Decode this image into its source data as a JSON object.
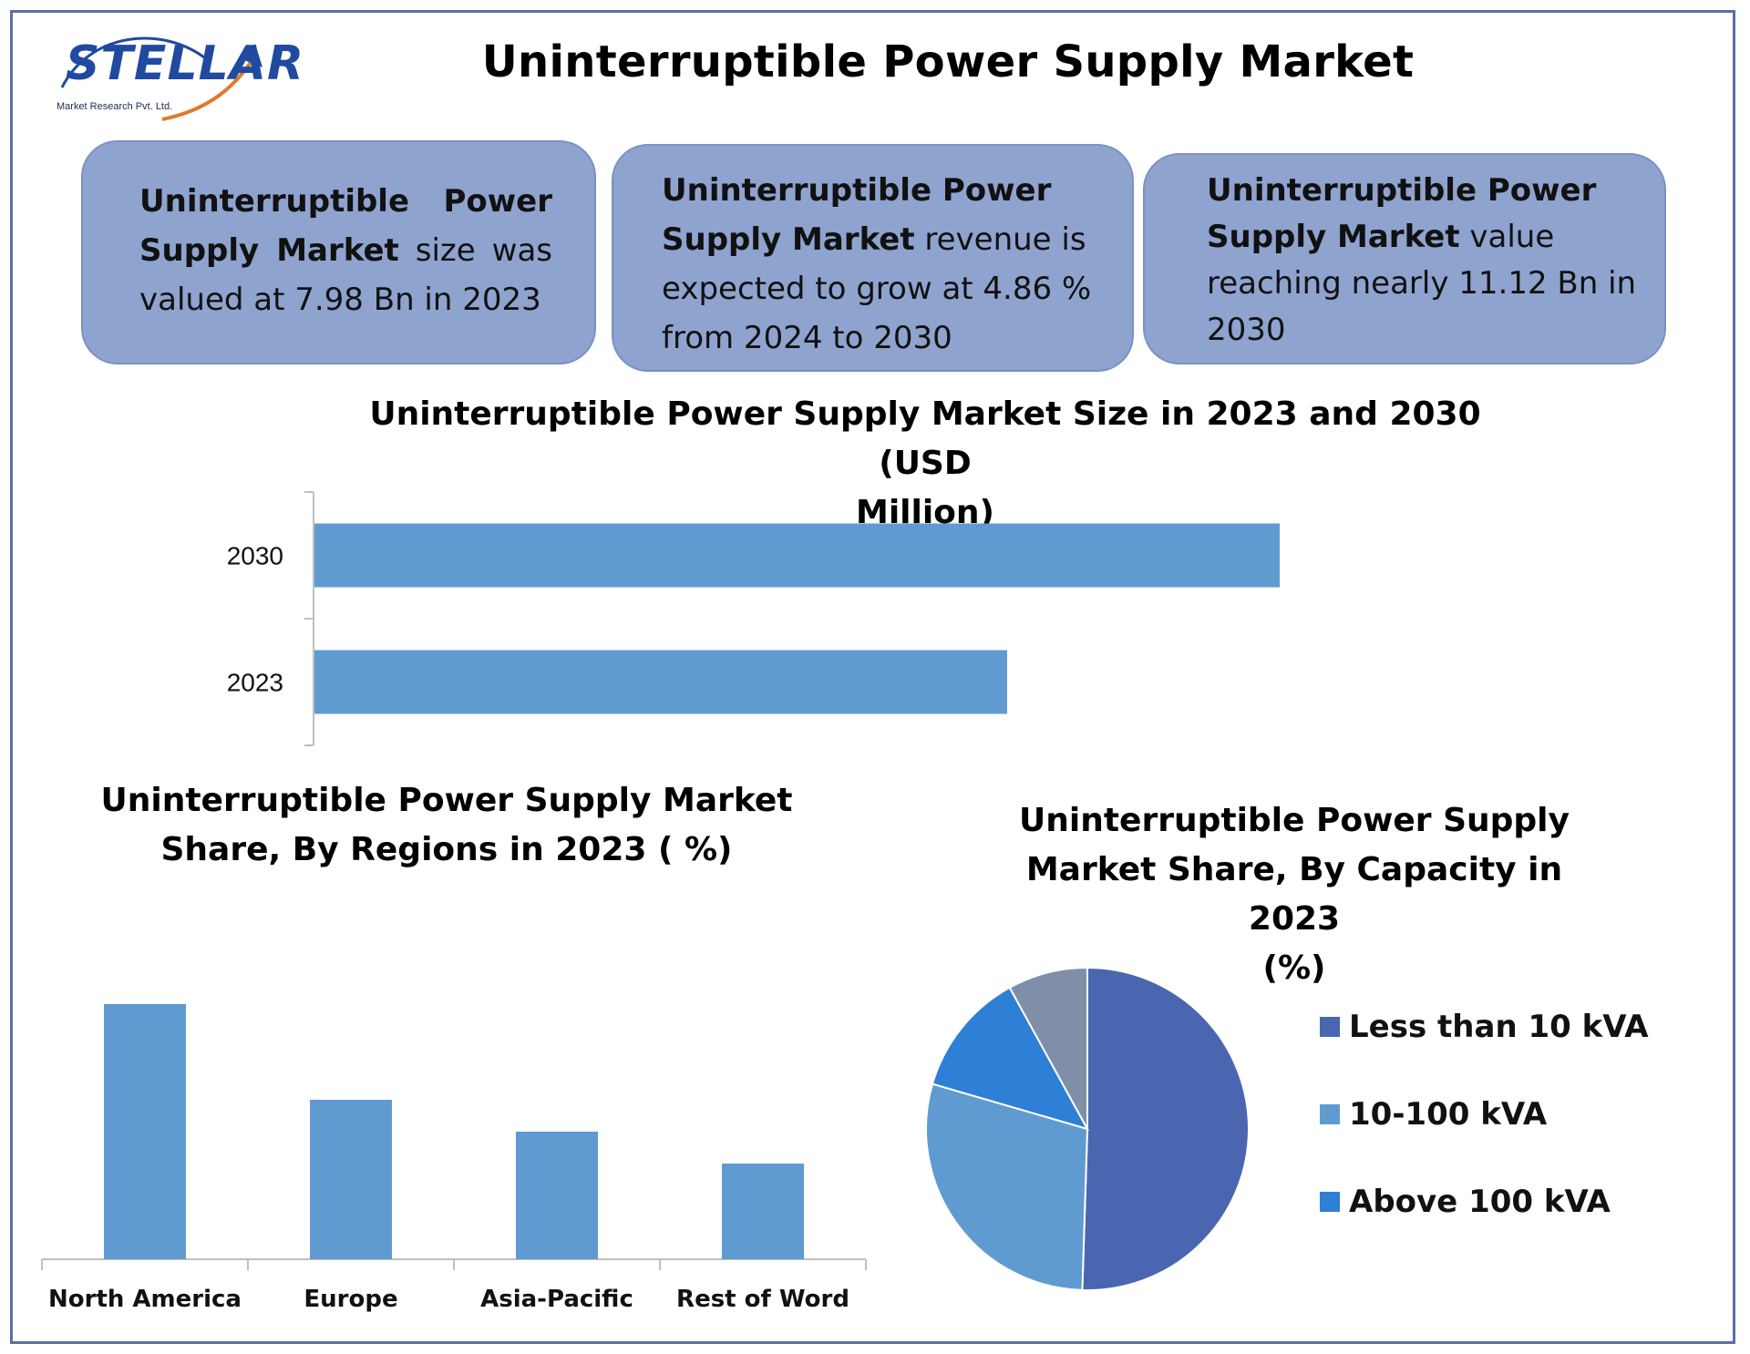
{
  "header": {
    "logo_word": "STELLAR",
    "logo_sub": "Market Research Pvt. Ltd.",
    "title": "Uninterruptible Power Supply Market"
  },
  "cards": [
    {
      "bold": "Uninterruptible Power Supply Market",
      "text": " size was valued at 7.98 Bn in 2023"
    },
    {
      "bold": "Uninterruptible Power Supply Market",
      "text": " revenue is expected to grow at 4.86 % from 2024 to 2030"
    },
    {
      "bold": "Uninterruptible Power Supply Market",
      "text": " value reaching nearly 11.12 Bn in 2030"
    }
  ],
  "colors": {
    "bar": "#5f9bd1",
    "card_bg": "#8fa3cf",
    "frame": "#5b6fa6",
    "pie": [
      "#4a66b0",
      "#5f9bd1",
      "#2e7fd6",
      "#7f8fa8"
    ]
  },
  "chart_data": [
    {
      "type": "bar",
      "orientation": "horizontal",
      "title": "Uninterruptible Power Supply Market Size in 2023 and 2030 (USD Million)",
      "title_lines": [
        "Uninterruptible Power Supply Market Size in 2023 and 2030 (USD",
        "Million)"
      ],
      "categories": [
        "2030",
        "2023"
      ],
      "values": [
        11120,
        7980
      ],
      "xlim": [
        0,
        15000
      ],
      "grid": false
    },
    {
      "type": "bar",
      "title": "Uninterruptible Power Supply Market Share, By Regions in 2023 ( %)",
      "title_lines": [
        "Uninterruptible Power Supply Market",
        "Share, By Regions in 2023 ( %)"
      ],
      "categories": [
        "North America",
        "Europe",
        "Asia-Pacific",
        "Rest of Word"
      ],
      "values": [
        40,
        25,
        20,
        15
      ],
      "ylim": [
        0,
        45
      ],
      "grid": false
    },
    {
      "type": "pie",
      "title": "Uninterruptible Power Supply Market Share, By Capacity in 2023 (%)",
      "title_lines": [
        "Uninterruptible Power Supply",
        "Market Share, By Capacity in 2023",
        "(%)"
      ],
      "labels": [
        "Less than 10 kVA",
        "10-100 kVA",
        "Above 100 kVA",
        ""
      ],
      "values": [
        50.5,
        29,
        12.5,
        8
      ],
      "legend": [
        "Less than 10 kVA",
        "10-100 kVA",
        "Above 100 kVA"
      ],
      "legend_position": "right"
    }
  ]
}
